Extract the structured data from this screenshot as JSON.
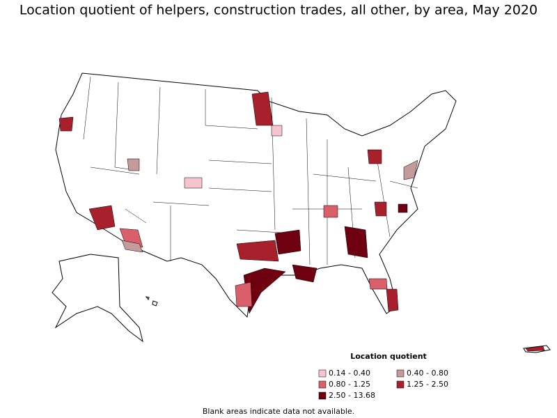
{
  "title": "Location quotient of helpers, construction trades, all other, by area, May 2020",
  "legend": {
    "title": "Location quotient",
    "items": [
      {
        "label": "0.14 - 0.40",
        "color": "#f5c4cf"
      },
      {
        "label": "0.40 - 0.80",
        "color": "#c49a9a"
      },
      {
        "label": "0.80 - 1.25",
        "color": "#d9606a"
      },
      {
        "label": "1.25 - 2.50",
        "color": "#a8202c"
      },
      {
        "label": "2.50 - 13.68",
        "color": "#6e0010"
      }
    ]
  },
  "note": "Blank areas indicate data not available."
}
